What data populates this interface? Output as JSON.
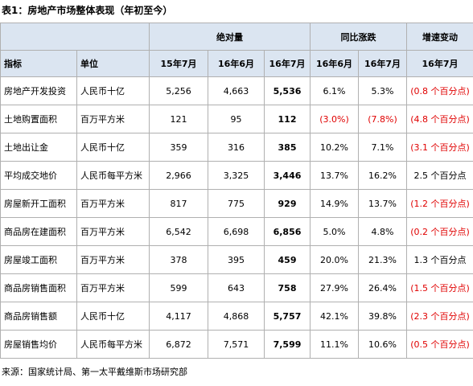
{
  "title": "表1：房地产市场整体表现（年初至今）",
  "table": {
    "groups": [
      "绝对量",
      "同比涨跌",
      "增速变动"
    ],
    "columns": [
      "指标",
      "单位",
      "15年7月",
      "16年6月",
      "16年7月",
      "16年6月",
      "16年7月",
      "16年7月"
    ],
    "rows": [
      [
        "房地产开发投资",
        "人民币十亿",
        "5,256",
        "4,663",
        "5,536",
        "6.1%",
        "5.3%",
        "(0.8 个百分点)"
      ],
      [
        "土地购置面积",
        "百万平方米",
        "121",
        "95",
        "112",
        "(3.0%)",
        "(7.8%)",
        "(4.8 个百分点)"
      ],
      [
        "土地出让金",
        "人民币十亿",
        "359",
        "316",
        "385",
        "10.2%",
        "7.1%",
        "(3.1 个百分点)"
      ],
      [
        "平均成交地价",
        "人民币每平方米",
        "2,966",
        "3,325",
        "3,446",
        "13.7%",
        "16.2%",
        "2.5 个百分点"
      ],
      [
        "房屋新开工面积",
        "百万平方米",
        "817",
        "775",
        "929",
        "14.9%",
        "13.7%",
        "(1.2 个百分点)"
      ],
      [
        "商品房在建面积",
        "百万平方米",
        "6,542",
        "6,698",
        "6,856",
        "5.0%",
        "4.8%",
        "(0.2 个百分点)"
      ],
      [
        "房屋竣工面积",
        "百万平方米",
        "378",
        "395",
        "459",
        "20.0%",
        "21.3%",
        "1.3 个百分点"
      ],
      [
        "商品房销售面积",
        "百万平方米",
        "599",
        "643",
        "758",
        "27.9%",
        "26.4%",
        "(1.5 个百分点)"
      ],
      [
        "商品房销售额",
        "人民币十亿",
        "4,117",
        "4,868",
        "5,757",
        "42.1%",
        "39.8%",
        "(2.3 个百分点)"
      ],
      [
        "房屋销售均价",
        "人民币每平方米",
        "6,872",
        "7,571",
        "7,599",
        "11.1%",
        "10.6%",
        "(0.5 个百分点)"
      ]
    ]
  },
  "source": "来源：国家统计局、第一太平戴维斯市场研究部"
}
